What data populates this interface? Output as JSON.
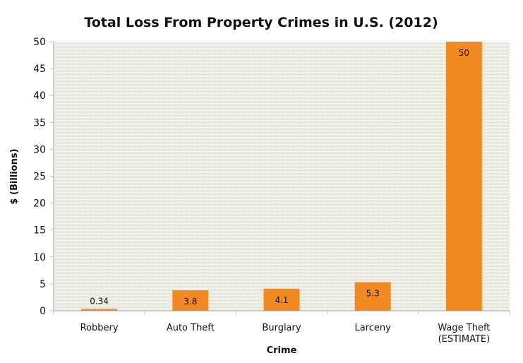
{
  "chart_data": {
    "type": "bar",
    "title": "Total Loss From Property Crimes in U.S. (2012)",
    "xlabel": "Crime",
    "ylabel": "$ (Billions)",
    "categories": [
      [
        "Robbery"
      ],
      [
        "Auto Theft"
      ],
      [
        "Burglary"
      ],
      [
        "Larceny"
      ],
      [
        "Wage Theft",
        "(ESTIMATE)"
      ]
    ],
    "values": [
      0.34,
      3.8,
      4.1,
      5.3,
      50
    ],
    "data_labels": [
      "0.34",
      "3.8",
      "4.1",
      "5.3",
      "50"
    ],
    "ylim": [
      0,
      50
    ],
    "yticks": [
      0,
      5,
      10,
      15,
      20,
      25,
      30,
      35,
      40,
      45,
      50
    ],
    "grid": false,
    "legend": "none",
    "colors": {
      "bar": "#f28a23",
      "plot_background": "#e9e7d6",
      "pattern_dot": "#ffffff",
      "axis": "#bfbfbf"
    }
  }
}
